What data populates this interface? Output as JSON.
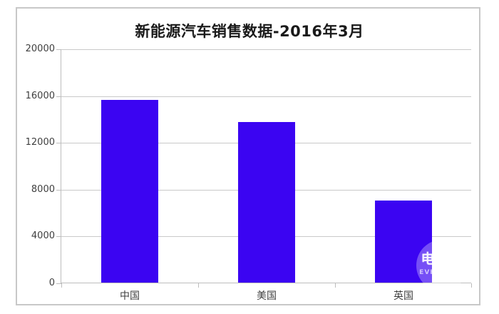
{
  "title": "新能源汽车销售数据-2016年3月",
  "watermark": {
    "glyph": "电",
    "text": "EVH"
  },
  "colors": {
    "bar": "#3B04F2",
    "gridline": "#C9C9C9",
    "axis": "#BDBDBD",
    "frame_border": "#C8C8C8",
    "title_text": "#1A1A1A",
    "label_text": "#3F3F3F"
  },
  "chart_data": {
    "type": "bar",
    "title": "新能源汽车销售数据-2016年3月",
    "categories": [
      "中国",
      "美国",
      "英国"
    ],
    "values": [
      15600,
      13700,
      7000
    ],
    "xlabel": "",
    "ylabel": "",
    "ylim": [
      0,
      20000
    ],
    "yticks": [
      0,
      4000,
      8000,
      12000,
      16000,
      20000
    ],
    "grid": true,
    "legend": false
  }
}
